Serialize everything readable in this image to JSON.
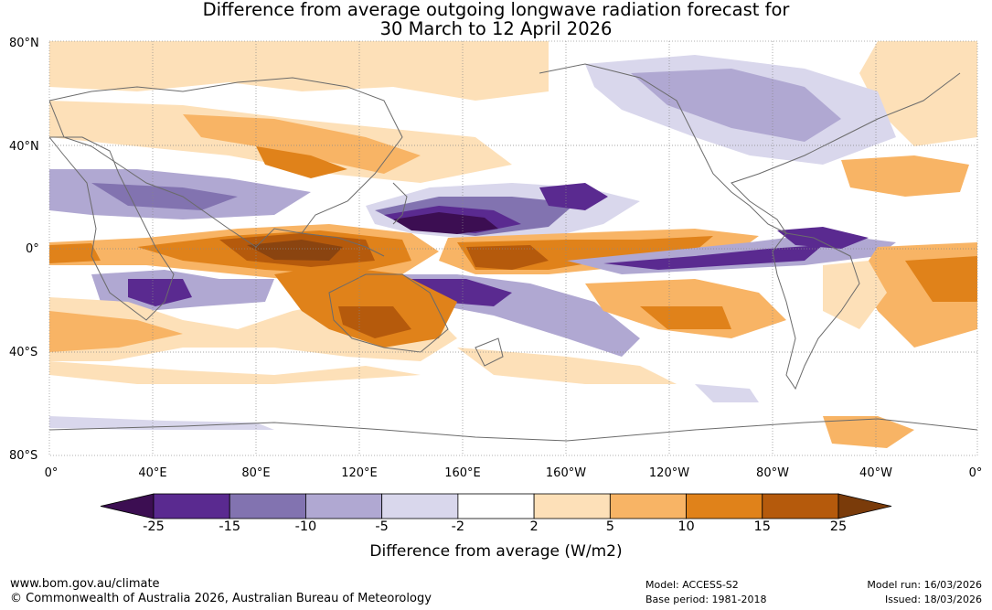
{
  "title_line1": "Difference from average outgoing longwave radiation forecast for",
  "title_line2": "30 March to 12 April 2026",
  "lat_labels": [
    "80°N",
    "40°N",
    "0°",
    "40°S",
    "80°S"
  ],
  "lon_labels": [
    "0°",
    "40°E",
    "80°E",
    "120°E",
    "160°E",
    "160°W",
    "120°W",
    "80°W",
    "40°W",
    "0°"
  ],
  "colorbar": {
    "title": "Difference from average (W/m2)",
    "labels": [
      "-25",
      "-15",
      "-10",
      "-5",
      "-2",
      "2",
      "5",
      "10",
      "15",
      "25"
    ],
    "colors": [
      "#3c0e52",
      "#5a2a90",
      "#8273b0",
      "#b0a8d2",
      "#d9d7ec",
      "#ffffff",
      "#fde0b8",
      "#f8b465",
      "#e0821a",
      "#b55a0c",
      "#7a3b0a"
    ]
  },
  "footer": {
    "url": "www.bom.gov.au/climate",
    "copyright": "© Commonwealth of Australia 2026, Australian Bureau of Meteorology",
    "model": "Model: ACCESS-S2",
    "base_period": "Base period: 1981-2018",
    "model_run": "Model run: 16/03/2026",
    "issued": "Issued: 18/03/2026"
  }
}
